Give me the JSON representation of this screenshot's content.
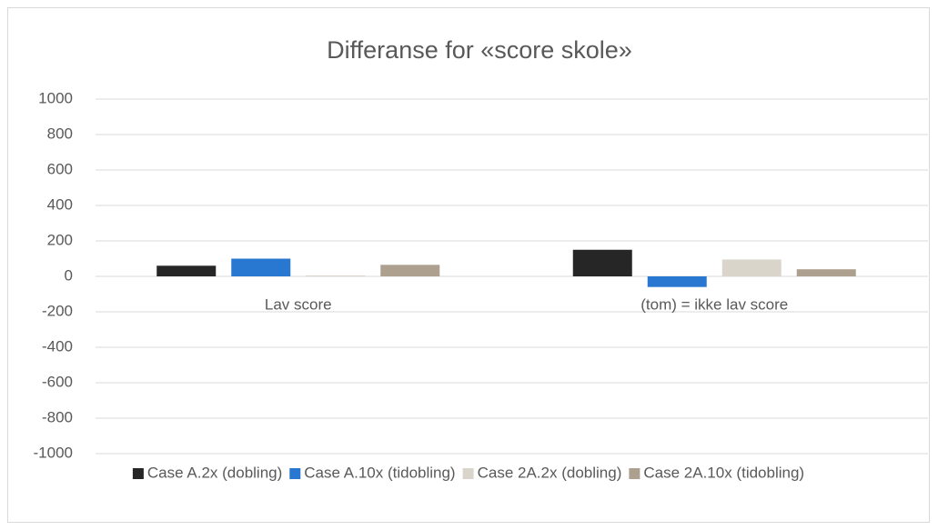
{
  "chart_data": {
    "type": "bar",
    "title": "Differanse for «score skole»",
    "categories": [
      "Lav score",
      "(tom) = ikke lav score"
    ],
    "series": [
      {
        "name": "Case A.2x (dobling)",
        "color": "#262626",
        "values": [
          60,
          150
        ]
      },
      {
        "name": "Case A.10x (tidobling)",
        "color": "#2878d2",
        "values": [
          100,
          -60
        ]
      },
      {
        "name": "Case 2A.2x (dobling)",
        "color": "#d9d5ca",
        "values": [
          5,
          95
        ]
      },
      {
        "name": "Case 2A.10x (tidobling)",
        "color": "#aea08e",
        "values": [
          65,
          40
        ]
      }
    ],
    "ylim": [
      -1000,
      1000
    ],
    "yticks": [
      -1000,
      -800,
      -600,
      -400,
      -200,
      0,
      200,
      400,
      600,
      800,
      1000
    ],
    "grid": true,
    "legend": "bottom"
  }
}
